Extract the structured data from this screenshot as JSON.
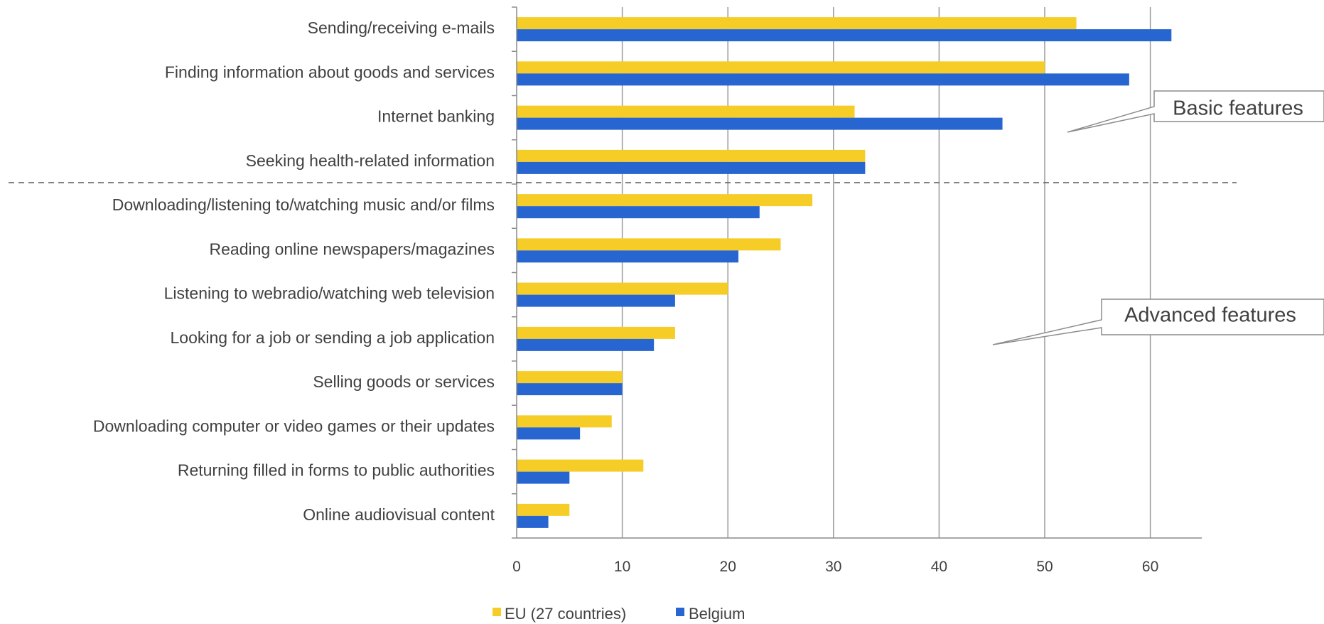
{
  "chart_data": {
    "type": "bar",
    "orientation": "horizontal",
    "categories": [
      "Sending/receiving e-mails",
      "Finding information about goods and services",
      "Internet banking",
      "Seeking health-related information",
      "Downloading/listening to/watching music and/or films",
      "Reading online newspapers/magazines",
      "Listening to webradio/watching web television",
      "Looking for a job or sending a job application",
      "Selling goods or services",
      "Downloading computer or video games or their updates",
      "Returning filled in forms to public authorities",
      "Online audiovisual content"
    ],
    "series": [
      {
        "name": "EU (27 countries)",
        "color": "#F5CD26",
        "values": [
          53,
          50,
          32,
          33,
          28,
          25,
          20,
          15,
          10,
          9,
          12,
          5
        ]
      },
      {
        "name": "Belgium",
        "color": "#2766D1",
        "values": [
          62,
          58,
          46,
          33,
          23,
          21,
          15,
          13,
          10,
          6,
          5,
          3
        ]
      }
    ],
    "xlim": [
      0,
      65
    ],
    "xticks": [
      "0",
      "10",
      "20",
      "30",
      "40",
      "50",
      "60"
    ],
    "grid": true,
    "legend_position": "bottom",
    "annotations": [
      {
        "text": "Basic features"
      },
      {
        "text": "Advanced features"
      }
    ],
    "separator_after_category": 3
  }
}
